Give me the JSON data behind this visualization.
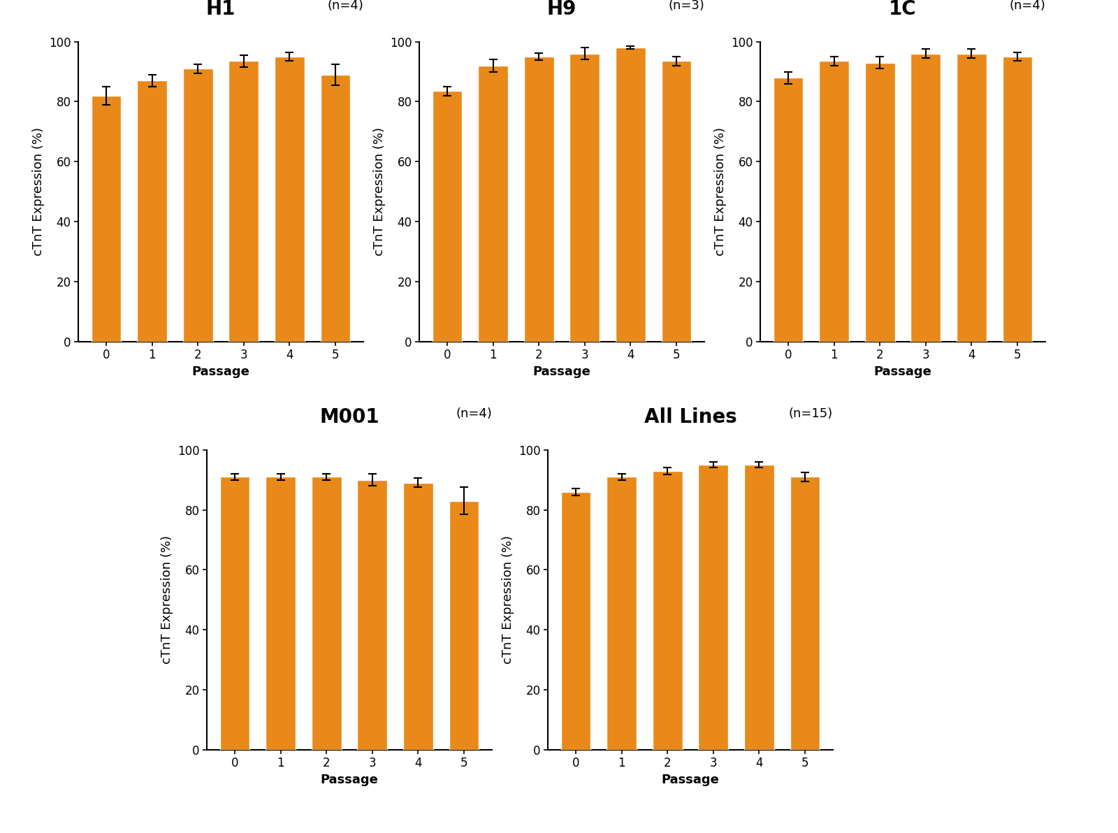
{
  "subplots": [
    {
      "title": "H1",
      "n_label": "(n=4)",
      "values": [
        82.0,
        87.0,
        91.0,
        93.5,
        95.0,
        89.0
      ],
      "errors": [
        3.0,
        2.0,
        1.5,
        2.0,
        1.5,
        3.5
      ]
    },
    {
      "title": "H9",
      "n_label": "(n=3)",
      "values": [
        83.5,
        92.0,
        95.0,
        96.0,
        98.0,
        93.5
      ],
      "errors": [
        1.5,
        2.0,
        1.2,
        2.0,
        0.5,
        1.5
      ]
    },
    {
      "title": "1C",
      "n_label": "(n=4)",
      "values": [
        88.0,
        93.5,
        93.0,
        96.0,
        96.0,
        95.0
      ],
      "errors": [
        2.0,
        1.5,
        2.0,
        1.5,
        1.5,
        1.5
      ]
    },
    {
      "title": "M001",
      "n_label": "(n=4)",
      "values": [
        91.0,
        91.0,
        91.0,
        90.0,
        89.0,
        83.0
      ],
      "errors": [
        1.0,
        1.0,
        1.0,
        2.0,
        1.5,
        4.5
      ]
    },
    {
      "title": "All Lines",
      "n_label": "(n=15)",
      "values": [
        86.0,
        91.0,
        93.0,
        95.0,
        95.0,
        91.0
      ],
      "errors": [
        1.2,
        1.0,
        1.2,
        1.0,
        1.0,
        1.5
      ]
    }
  ],
  "bar_color": "#E8891A",
  "error_color": "black",
  "passages": [
    0,
    1,
    2,
    3,
    4,
    5
  ],
  "ylabel": "cTnT Expression (%)",
  "xlabel": "Passage",
  "ylim": [
    0,
    100
  ],
  "yticks": [
    0,
    20,
    40,
    60,
    80,
    100
  ],
  "title_fontsize": 20,
  "axis_label_fontsize": 13,
  "tick_fontsize": 12,
  "n_label_fontsize": 13,
  "background_color": "#ffffff",
  "bar_width": 0.65
}
